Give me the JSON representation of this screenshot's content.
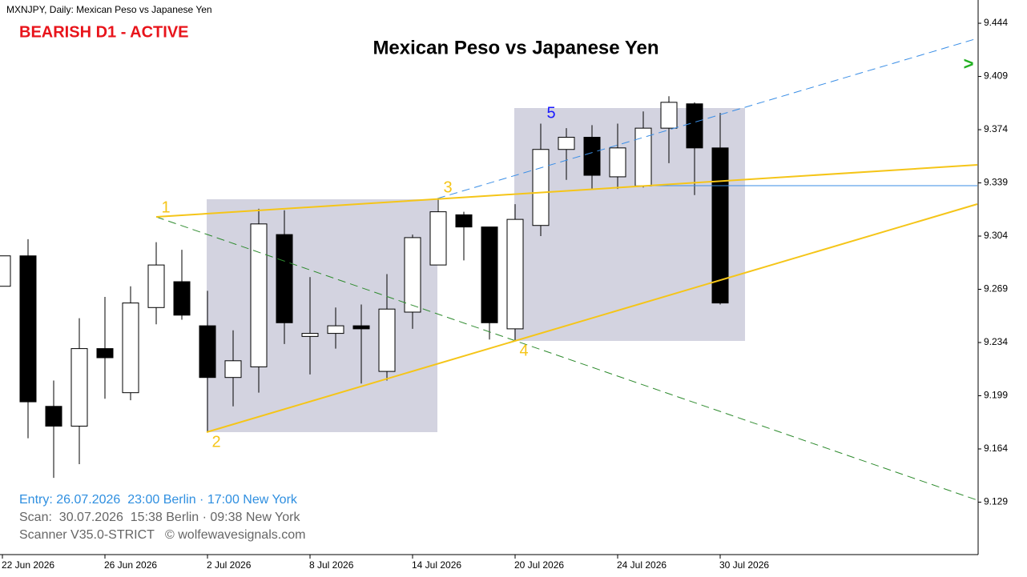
{
  "chart_data": {
    "type": "candlestick",
    "header": "MXNJPY, Daily:  Mexican Peso vs Japanese Yen",
    "title": "Mexican Peso vs Japanese Yen",
    "status": "BEARISH D1 - ACTIVE",
    "signal": ">",
    "wave_labels": [
      "1",
      "2",
      "3",
      "4",
      "5"
    ],
    "footer": [
      "Entry: 26.07.2026  23:00 Berlin · 17:00 New York",
      "Scan:  30.07.2026  15:38 Berlin · 09:38 New York",
      "Scanner V35.0-STRICT   © wolfewavesignals.com"
    ],
    "categories": [
      "22 Jun 2026",
      null,
      null,
      null,
      "26 Jun 2026",
      null,
      null,
      null,
      "2 Jul 2026",
      null,
      null,
      null,
      "8 Jul 2026",
      null,
      null,
      null,
      "14 Jul 2026",
      null,
      null,
      null,
      "20 Jul 2026",
      null,
      null,
      null,
      "24 Jul 2026",
      null,
      null,
      null,
      "30 Jul 2026"
    ],
    "open": [
      9.271,
      9.291,
      9.192,
      9.179,
      9.23,
      9.201,
      9.257,
      9.274,
      9.245,
      9.211,
      9.218,
      9.305,
      9.238,
      9.24,
      9.245,
      9.215,
      9.254,
      9.285,
      9.318,
      9.31,
      9.243,
      9.311,
      9.361,
      9.369,
      9.343,
      9.337,
      9.375,
      9.391,
      9.362
    ],
    "high": [
      9.291,
      9.302,
      9.209,
      9.25,
      9.264,
      9.271,
      9.3,
      9.295,
      9.268,
      9.242,
      9.322,
      9.321,
      9.277,
      9.257,
      9.259,
      9.279,
      9.305,
      9.328,
      9.32,
      9.31,
      9.325,
      9.378,
      9.375,
      9.377,
      9.378,
      9.386,
      9.396,
      9.392,
      9.385
    ],
    "low": [
      9.271,
      9.171,
      9.145,
      9.154,
      9.197,
      9.196,
      9.246,
      9.249,
      9.175,
      9.192,
      9.201,
      9.233,
      9.213,
      9.23,
      9.207,
      9.209,
      9.243,
      9.285,
      9.288,
      9.236,
      9.235,
      9.304,
      9.341,
      9.335,
      9.335,
      9.336,
      9.352,
      9.331,
      9.259
    ],
    "close": [
      9.291,
      9.195,
      9.179,
      9.23,
      9.224,
      9.26,
      9.285,
      9.252,
      9.211,
      9.222,
      9.312,
      9.247,
      9.24,
      9.245,
      9.243,
      9.256,
      9.303,
      9.32,
      9.31,
      9.247,
      9.315,
      9.361,
      9.369,
      9.344,
      9.362,
      9.375,
      9.392,
      9.362,
      9.26
    ],
    "ylim": [
      9.0945,
      9.4593
    ],
    "yticks": [
      9.444,
      9.409,
      9.374,
      9.339,
      9.304,
      9.269,
      9.234,
      9.199,
      9.164,
      9.129
    ],
    "up_color": "#ffffff",
    "down_color": "#000000"
  }
}
